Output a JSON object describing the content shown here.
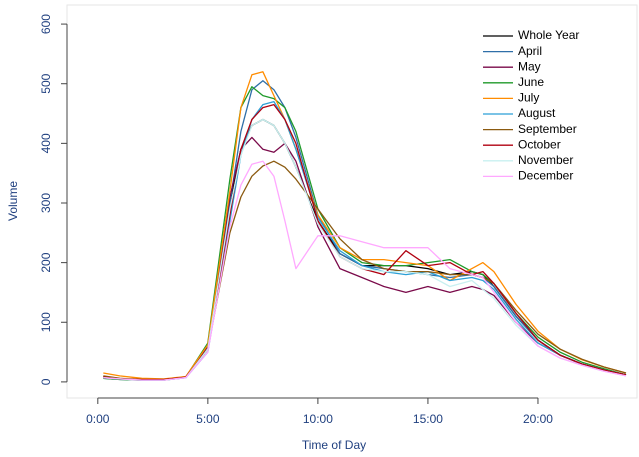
{
  "chart_data": {
    "type": "line",
    "x_label": "Time of Day",
    "y_label": "Volume",
    "x": [
      0.25,
      1,
      2,
      3,
      4,
      5,
      6,
      6.5,
      7,
      7.5,
      8,
      8.5,
      9,
      10,
      11,
      12,
      13,
      14,
      15,
      16,
      17,
      17.5,
      18,
      19,
      20,
      21,
      22,
      23,
      24
    ],
    "xlim": [
      -1.4,
      24.5
    ],
    "xticks": [
      {
        "value": 0,
        "label": "0:00"
      },
      {
        "value": 5,
        "label": "5:00"
      },
      {
        "value": 10,
        "label": "10:00"
      },
      {
        "value": 15,
        "label": "15:00"
      },
      {
        "value": 20,
        "label": "20:00"
      }
    ],
    "ylim": [
      -27,
      632
    ],
    "yticks": [
      0,
      100,
      200,
      300,
      400,
      500,
      600
    ],
    "legend": "top-right",
    "series": [
      {
        "name": "Whole Year",
        "color": "#000000",
        "values": [
          8,
          5,
          4,
          4,
          8,
          60,
          300,
          390,
          430,
          440,
          430,
          400,
          360,
          270,
          215,
          195,
          195,
          195,
          190,
          180,
          185,
          180,
          160,
          110,
          70,
          45,
          30,
          20,
          12
        ]
      },
      {
        "name": "April",
        "color": "#2f6fa8",
        "values": [
          6,
          4,
          3,
          3,
          7,
          55,
          300,
          420,
          490,
          505,
          490,
          460,
          410,
          280,
          215,
          195,
          190,
          185,
          180,
          175,
          180,
          175,
          160,
          110,
          70,
          45,
          30,
          20,
          12
        ]
      },
      {
        "name": "May",
        "color": "#7a0a4a",
        "values": [
          8,
          5,
          4,
          4,
          8,
          60,
          310,
          390,
          410,
          390,
          385,
          400,
          370,
          260,
          190,
          175,
          160,
          150,
          160,
          150,
          160,
          155,
          145,
          100,
          65,
          45,
          30,
          20,
          12
        ]
      },
      {
        "name": "June",
        "color": "#1f9a2a",
        "values": [
          6,
          4,
          3,
          3,
          8,
          65,
          340,
          460,
          495,
          480,
          475,
          460,
          420,
          290,
          225,
          200,
          195,
          195,
          200,
          205,
          185,
          180,
          165,
          115,
          75,
          50,
          33,
          22,
          12
        ]
      },
      {
        "name": "July",
        "color": "#ff8c00",
        "values": [
          15,
          10,
          6,
          5,
          9,
          62,
          320,
          460,
          515,
          520,
          480,
          440,
          390,
          280,
          225,
          205,
          205,
          200,
          195,
          170,
          190,
          200,
          185,
          130,
          85,
          55,
          37,
          25,
          15
        ]
      },
      {
        "name": "August",
        "color": "#2a9fd6",
        "values": [
          7,
          5,
          3,
          3,
          7,
          50,
          270,
          380,
          440,
          465,
          470,
          440,
          390,
          275,
          220,
          195,
          185,
          180,
          185,
          170,
          175,
          170,
          155,
          105,
          65,
          45,
          30,
          20,
          12
        ]
      },
      {
        "name": "September",
        "color": "#8b5a10",
        "values": [
          10,
          6,
          4,
          4,
          8,
          55,
          250,
          310,
          345,
          362,
          370,
          360,
          340,
          290,
          240,
          205,
          190,
          185,
          185,
          180,
          180,
          175,
          165,
          120,
          80,
          55,
          38,
          25,
          15
        ]
      },
      {
        "name": "October",
        "color": "#b00010",
        "values": [
          8,
          5,
          4,
          4,
          8,
          55,
          280,
          390,
          440,
          460,
          465,
          440,
          400,
          270,
          210,
          190,
          180,
          220,
          195,
          200,
          180,
          185,
          165,
          115,
          70,
          45,
          30,
          20,
          12
        ]
      },
      {
        "name": "November",
        "color": "#c8f0f0",
        "values": [
          7,
          5,
          3,
          3,
          7,
          55,
          290,
          380,
          430,
          440,
          430,
          400,
          360,
          265,
          210,
          190,
          185,
          185,
          180,
          160,
          170,
          155,
          140,
          95,
          60,
          40,
          28,
          18,
          10
        ]
      },
      {
        "name": "December",
        "color": "#ffa8ff",
        "values": [
          7,
          5,
          3,
          3,
          7,
          50,
          260,
          330,
          365,
          370,
          345,
          270,
          190,
          245,
          245,
          235,
          225,
          225,
          225,
          190,
          180,
          175,
          150,
          100,
          60,
          40,
          28,
          18,
          10
        ]
      }
    ]
  }
}
